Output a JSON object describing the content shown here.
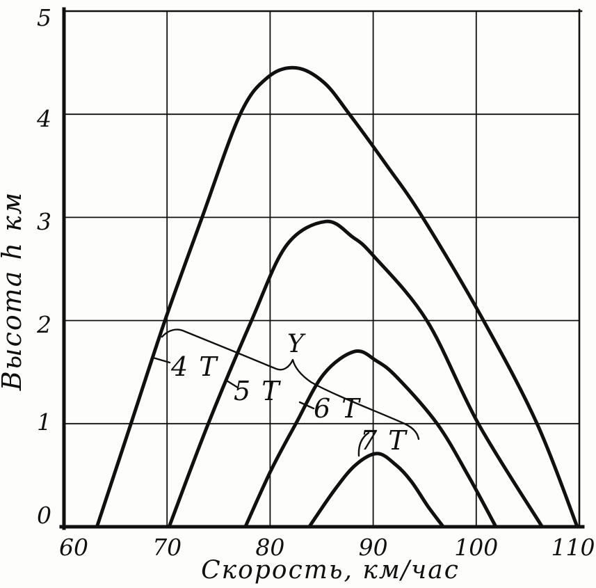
{
  "figure": {
    "background": "#fdfdfb",
    "ink_color": "#101010",
    "description": "Scanned line chart: helicopter ceiling height vs speed for four load weights"
  },
  "chart_data": {
    "type": "line",
    "title": "",
    "xlabel": "Скорость, км/час",
    "ylabel": "Высота h км",
    "xlim": [
      60,
      110
    ],
    "ylim": [
      0,
      5
    ],
    "x_ticks": [
      60,
      70,
      80,
      90,
      100,
      110
    ],
    "y_ticks": [
      0,
      1,
      2,
      3,
      4,
      5
    ],
    "grid": true,
    "legend_position": "inline-curve-labels",
    "series": [
      {
        "name": "4 Т",
        "label": "4 Т",
        "points": [
          [
            63.2,
            0
          ],
          [
            66.5,
            1.0
          ],
          [
            69.8,
            2.0
          ],
          [
            73.4,
            3.0
          ],
          [
            77.1,
            4.0
          ],
          [
            79.8,
            4.36
          ],
          [
            82.5,
            4.45
          ],
          [
            85.2,
            4.31
          ],
          [
            87.7,
            4.0
          ],
          [
            91.2,
            3.52
          ],
          [
            94.8,
            3.0
          ],
          [
            100.7,
            2.0
          ],
          [
            105.9,
            1.0
          ],
          [
            109.8,
            0
          ]
        ]
      },
      {
        "name": "5 Т",
        "label": "5 Т",
        "points": [
          [
            70.2,
            0
          ],
          [
            74.0,
            1.0
          ],
          [
            78.2,
            2.0
          ],
          [
            81.6,
            2.73
          ],
          [
            85.4,
            2.96
          ],
          [
            88.0,
            2.81
          ],
          [
            90.0,
            2.63
          ],
          [
            95.2,
            2.0
          ],
          [
            100.2,
            1.0
          ],
          [
            106.4,
            0
          ]
        ]
      },
      {
        "name": "6 Т",
        "label": "6 Т",
        "points": [
          [
            77.6,
            0
          ],
          [
            80.1,
            0.55
          ],
          [
            82.5,
            1.0
          ],
          [
            85.2,
            1.48
          ],
          [
            88.2,
            1.7
          ],
          [
            90.3,
            1.61
          ],
          [
            92.3,
            1.45
          ],
          [
            96.2,
            1.0
          ],
          [
            99.2,
            0.5
          ],
          [
            101.9,
            0
          ]
        ]
      },
      {
        "name": "7 Т",
        "label": "7 Т",
        "points": [
          [
            83.8,
            0
          ],
          [
            86.2,
            0.35
          ],
          [
            88.3,
            0.6
          ],
          [
            90.4,
            0.71
          ],
          [
            92.2,
            0.6
          ],
          [
            93.7,
            0.44
          ],
          [
            95.3,
            0.2
          ],
          [
            96.8,
            0
          ]
        ]
      }
    ],
    "annotations": {
      "envelope_label": "Y"
    }
  },
  "labels": {
    "x_axis_title": "Скорость, км/час",
    "y_axis_title": "Высота h км",
    "curve_4t": "4 Т",
    "curve_5t": "5 Т",
    "curve_6t": "6 Т",
    "curve_7t": "7 Т",
    "envelope": "Y"
  }
}
